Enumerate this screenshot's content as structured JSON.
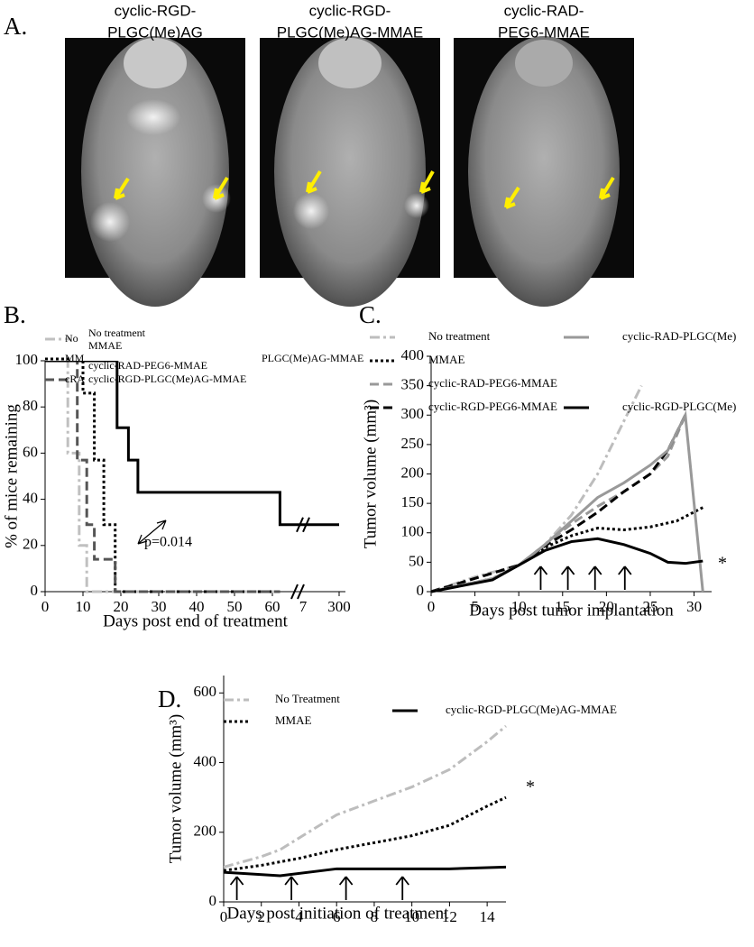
{
  "panel_a": {
    "label": "A.",
    "captions": [
      [
        "cyclic-RGD-",
        "PLGC(Me)AG"
      ],
      [
        "cyclic-RGD-",
        "PLGC(Me)AG-MMAE"
      ],
      [
        "cyclic-RAD-",
        "PEG6-MMAE"
      ]
    ]
  },
  "chart_data": [
    {
      "type": "step",
      "label": "B.",
      "y_label": "% of mice remaining",
      "x_label": "Days post end of treatment",
      "xlim": [
        0,
        300
      ],
      "xbreak": 62,
      "xticks": [
        0,
        10,
        20,
        30,
        40,
        50,
        60,
        300
      ],
      "xticks_break_labels": [
        "7"
      ],
      "ylim": [
        0,
        100
      ],
      "yticks": [
        0,
        20,
        40,
        60,
        80,
        100
      ],
      "annotation": "p=0.014",
      "legend_fragments": [
        "No",
        "MM",
        "cRA",
        "PLGC(Me)AG-MMAE"
      ],
      "series": [
        {
          "name": "No treatment",
          "color": "#c0c0c0",
          "dash": "dashdot",
          "x": [
            0,
            6,
            9,
            11,
            62
          ],
          "values": [
            100,
            60,
            20,
            0,
            0
          ]
        },
        {
          "name": "MMAE",
          "color": "#000000",
          "dash": "dotted",
          "x": [
            0,
            10,
            13,
            15.5,
            18.5,
            62
          ],
          "values": [
            100,
            86,
            57,
            29,
            0,
            0
          ]
        },
        {
          "name": "cyclic-RAD-PEG6-MMAE",
          "color": "#555555",
          "dash": "dashed",
          "x": [
            0,
            8.5,
            11,
            13,
            18.5,
            62
          ],
          "values": [
            100,
            57,
            29,
            14,
            0,
            0
          ]
        },
        {
          "name": "cyclic-RGD-PLGC(Me)AG-MMAE",
          "color": "#000000",
          "dash": "solid",
          "x": [
            0,
            19,
            22,
            24.5,
            62,
            300
          ],
          "values": [
            100,
            71,
            57,
            43,
            29,
            29
          ]
        }
      ]
    },
    {
      "type": "line",
      "label": "C.",
      "y_label": "Tumor volume (mm³)",
      "x_label": "Days post tumor implantation",
      "xlim": [
        0,
        32
      ],
      "xticks": [
        0,
        5,
        10,
        15,
        20,
        25,
        30
      ],
      "ylim": [
        0,
        400
      ],
      "yticks": [
        0,
        50,
        100,
        150,
        200,
        250,
        300,
        350,
        400
      ],
      "annotation": "*",
      "arrows_x": [
        12.5,
        15.6,
        18.7,
        22.1
      ],
      "series": [
        {
          "name": "No treatment",
          "color": "#bdbdbd",
          "dash": "dashdot",
          "x": [
            0,
            5,
            10,
            13,
            16,
            19,
            22,
            24
          ],
          "values": [
            0,
            25,
            45,
            80,
            130,
            200,
            290,
            350
          ]
        },
        {
          "name": "MMAE",
          "color": "#000000",
          "dash": "dotted",
          "x": [
            0,
            7,
            10,
            13,
            16,
            19,
            22,
            25,
            28,
            31
          ],
          "values": [
            0,
            22,
            45,
            75,
            95,
            108,
            105,
            110,
            120,
            143
          ]
        },
        {
          "name": "cyclic-RAD-PEG6-MMAE",
          "color": "#999999",
          "dash": "dashed",
          "x": [
            0,
            10,
            13,
            16,
            19,
            22,
            25,
            27,
            29
          ],
          "values": [
            0,
            45,
            80,
            115,
            145,
            170,
            200,
            230,
            300
          ]
        },
        {
          "name": "cyclic-RGD-PEG6-MMAE",
          "color": "#000000",
          "dash": "dashed",
          "x": [
            0,
            10,
            13,
            16,
            19,
            22,
            25,
            27,
            29
          ],
          "values": [
            0,
            45,
            78,
            105,
            135,
            170,
            200,
            240,
            300
          ]
        },
        {
          "name": "cyclic-RAD-PLGC(Me)",
          "color": "#999999",
          "dash": "solid",
          "x": [
            0,
            7,
            10,
            13,
            16,
            19,
            22,
            25,
            27,
            29,
            31
          ],
          "values": [
            0,
            22,
            45,
            80,
            120,
            160,
            185,
            215,
            240,
            300,
            0
          ]
        },
        {
          "name": "cyclic-RGD-PLGC(Me)",
          "color": "#000000",
          "dash": "solid",
          "x": [
            0,
            7,
            10,
            13,
            16,
            19,
            22,
            25,
            27,
            29,
            31
          ],
          "values": [
            0,
            20,
            45,
            70,
            85,
            90,
            80,
            65,
            50,
            48,
            52
          ]
        }
      ]
    },
    {
      "type": "line",
      "label": "D.",
      "y_label": "Tumor volume (mm³)",
      "x_label": "Days post initiation of treatment",
      "xlim": [
        0,
        15
      ],
      "xticks": [
        0,
        2,
        4,
        6,
        8,
        10,
        12,
        14
      ],
      "ylim": [
        0,
        650
      ],
      "yticks": [
        0,
        200,
        400,
        600
      ],
      "annotation": "*",
      "arrows_x": [
        0.7,
        3.6,
        6.5,
        9.5
      ],
      "series": [
        {
          "name": "No Treatment",
          "color": "#bdbdbd",
          "dash": "dashdot",
          "x": [
            0,
            2,
            3,
            6,
            8,
            10,
            12,
            14,
            15
          ],
          "values": [
            100,
            130,
            150,
            250,
            290,
            330,
            380,
            460,
            505
          ]
        },
        {
          "name": "MMAE",
          "color": "#000000",
          "dash": "dotted",
          "x": [
            0,
            2,
            4,
            6,
            8,
            10,
            12,
            14,
            15
          ],
          "values": [
            90,
            105,
            125,
            150,
            170,
            190,
            220,
            275,
            300
          ]
        },
        {
          "name": "cyclic-RGD-PLGC(Me)AG-MMAE",
          "color": "#000000",
          "dash": "solid",
          "x": [
            0,
            3,
            6,
            8,
            10,
            12,
            15
          ],
          "values": [
            85,
            75,
            95,
            95,
            95,
            95,
            100
          ]
        }
      ]
    }
  ]
}
